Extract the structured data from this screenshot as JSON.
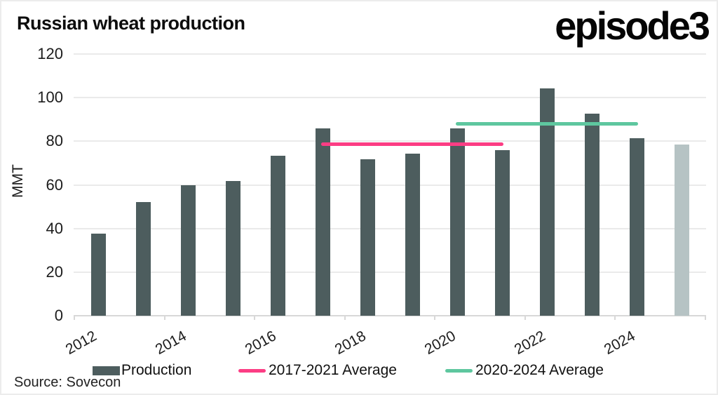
{
  "header": {
    "title": "Russian wheat production",
    "logo_text": "episode3"
  },
  "source": {
    "label": "Source: Sovecon"
  },
  "colors": {
    "bar": "#4d5d5e",
    "bar_forecast": "#b6c3c4",
    "avg_2017_2021": "#fc3d84",
    "avg_2020_2024": "#5ec79f",
    "gridline": "#eaeaea",
    "axis": "#d8d8d8",
    "text": "#1c1c1c"
  },
  "chart_data": {
    "type": "bar",
    "title": "Russian wheat production",
    "xlabel": "",
    "ylabel": "MMT",
    "ylim": [
      0,
      120
    ],
    "yticks": [
      0,
      20,
      40,
      60,
      80,
      100,
      120
    ],
    "grid": "horizontal",
    "categories": [
      2012,
      2013,
      2014,
      2015,
      2016,
      2017,
      2018,
      2019,
      2020,
      2021,
      2022,
      2023,
      2024,
      2025
    ],
    "values": [
      37.7,
      52.0,
      59.7,
      61.8,
      73.3,
      85.9,
      71.7,
      74.4,
      85.9,
      75.9,
      104.2,
      92.8,
      81.5,
      78.5
    ],
    "forecast_years": [
      2025
    ],
    "xtick_labels": [
      "2012",
      "2014",
      "2016",
      "2018",
      "2020",
      "2022",
      "2024"
    ],
    "avg_lines": [
      {
        "name": "2017-2021 Average",
        "value": 78.8,
        "from_year": 2017,
        "to_year": 2021,
        "color_key": "avg_2017_2021"
      },
      {
        "name": "2020-2024 Average",
        "value": 88.1,
        "from_year": 2020,
        "to_year": 2024,
        "color_key": "avg_2020_2024"
      }
    ],
    "legend": [
      {
        "label": "Production",
        "swatch": "rect",
        "color_key": "bar"
      },
      {
        "label": "2017-2021 Average",
        "swatch": "line",
        "color_key": "avg_2017_2021"
      },
      {
        "label": "2020-2024 Average",
        "swatch": "line",
        "color_key": "avg_2020_2024"
      }
    ],
    "legend_position": "bottom"
  }
}
